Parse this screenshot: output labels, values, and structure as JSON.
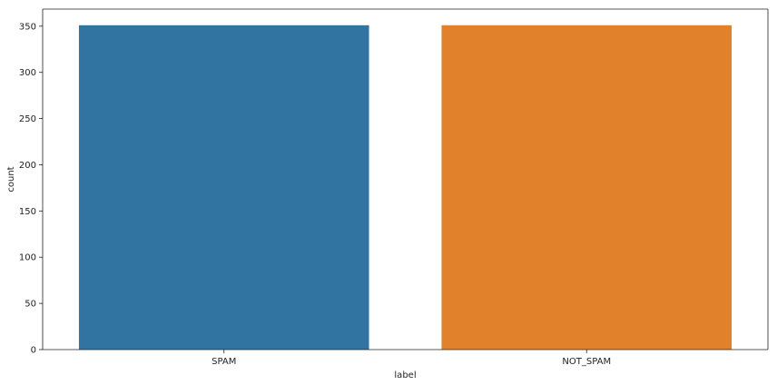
{
  "chart_data": {
    "type": "bar",
    "title": "",
    "xlabel": "label",
    "ylabel": "count",
    "categories": [
      "SPAM",
      "NOT_SPAM"
    ],
    "values": [
      351,
      351
    ],
    "colors": [
      "#3274a1",
      "#e1812c"
    ],
    "ylim": [
      0,
      368.5
    ],
    "yticks": [
      0,
      50,
      100,
      150,
      200,
      250,
      300,
      350
    ],
    "ytick_labels": [
      "0",
      "50",
      "100",
      "150",
      "200",
      "250",
      "300",
      "350"
    ],
    "grid": false,
    "legend": "none"
  }
}
